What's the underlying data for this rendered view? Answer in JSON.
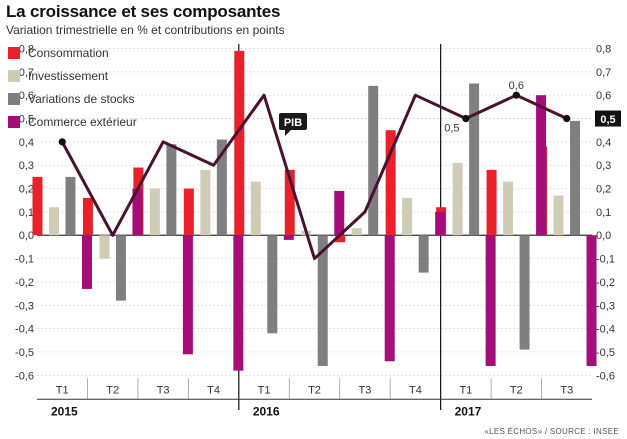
{
  "title": "La croissance et ses composantes",
  "subtitle": "Variation trimestrielle en % et contributions en points",
  "source": "«LES ÉCHOS» / SOURCE : INSEE",
  "chart_data": {
    "type": "bar",
    "title": "La croissance et ses composantes",
    "subtitle": "Variation trimestrielle en % et contributions en points",
    "categories": [
      "T1",
      "T2",
      "T3",
      "T4",
      "T1",
      "T2",
      "T3",
      "T4",
      "T1",
      "T2",
      "T3"
    ],
    "years": [
      {
        "label": "2015",
        "start": 0,
        "end": 3
      },
      {
        "label": "2016",
        "start": 4,
        "end": 7
      },
      {
        "label": "2017",
        "start": 8,
        "end": 10
      }
    ],
    "ylim": [
      -0.6,
      0.8
    ],
    "yticks": [
      "-0,6",
      "-0,5",
      "-0,4",
      "-0,3",
      "-0,2",
      "-0,1",
      "0,0",
      "0,1",
      "0,2",
      "0,3",
      "0,4",
      "0,5",
      "0,6",
      "0,7",
      "0,8"
    ],
    "series": [
      {
        "name": "Consommation",
        "color": "#e8212a",
        "values": [
          0.25,
          0.16,
          0.29,
          0.2,
          0.79,
          0.28,
          -0.03,
          0.45,
          0.12,
          0.28,
          0.38
        ]
      },
      {
        "name": "Investissement",
        "color": "#cfcbb4",
        "values": [
          0.12,
          -0.1,
          0.2,
          0.28,
          0.23,
          0.02,
          0.03,
          0.16,
          0.31,
          0.23,
          0.17
        ]
      },
      {
        "name": "Variations de stocks",
        "color": "#7f7f7f",
        "values": [
          0.25,
          -0.28,
          0.39,
          0.41,
          -0.42,
          -0.56,
          0.64,
          -0.16,
          0.65,
          -0.49,
          0.49
        ]
      },
      {
        "name": "Commerce extérieur",
        "color": "#a50e78",
        "values": [
          -0.23,
          0.2,
          -0.51,
          -0.58,
          -0.02,
          0.19,
          -0.54,
          0.1,
          -0.56,
          0.6,
          -0.56
        ]
      }
    ],
    "line": {
      "name": "PIB",
      "color": "#4a1230",
      "values": [
        0.4,
        0.0,
        0.4,
        0.3,
        0.6,
        -0.1,
        0.1,
        0.6,
        0.5,
        0.6,
        0.5
      ]
    },
    "annotations": [
      {
        "text": "PIB",
        "style": "tag"
      },
      {
        "text": "0,5",
        "index": 8
      },
      {
        "text": "0,6",
        "index": 9
      },
      {
        "text": "0,5",
        "index": 10,
        "style": "highlight"
      }
    ],
    "grid": true,
    "legend": "top-left"
  }
}
